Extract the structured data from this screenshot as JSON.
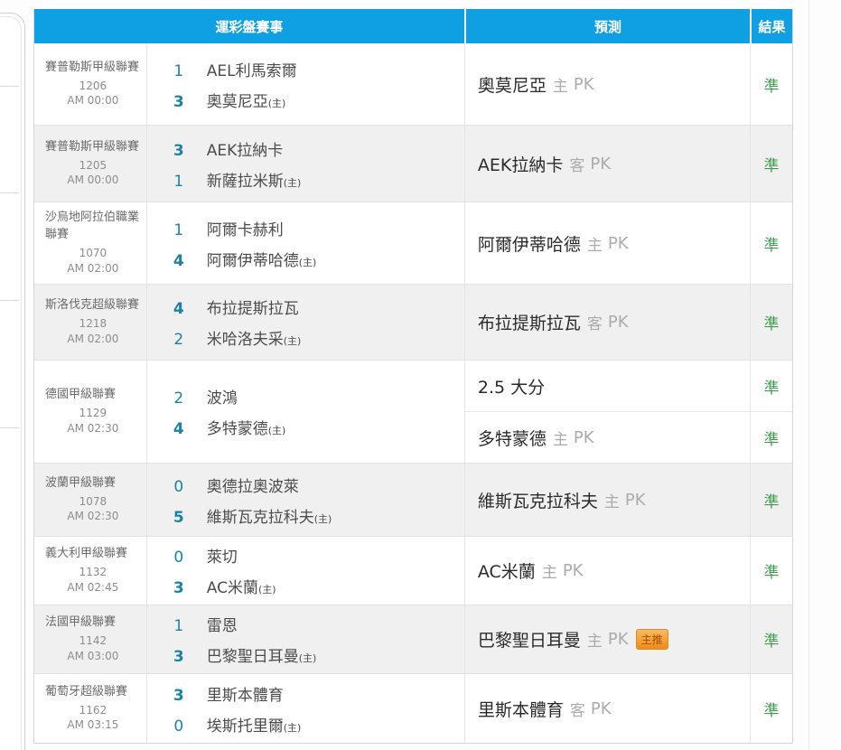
{
  "colors": {
    "header_bg": "#0f9fe3",
    "header_text": "#ffffff",
    "score": "#1b84a5",
    "muted": "#ababab",
    "result_green": "#3f9e4e",
    "badge_top": "#f7bc62",
    "badge_bottom": "#ee8c17",
    "badge_text": "#a94b00",
    "row_alt_bg": "#f0f0f0"
  },
  "table": {
    "headers": {
      "event": "運彩盤賽事",
      "prediction": "預測",
      "result": "結果"
    },
    "rows": [
      {
        "league": "賽普勒斯甲級聯賽",
        "match_id": "1206",
        "start_time": "AM 00:00",
        "away": {
          "score": "1",
          "team": "AEL利馬索爾",
          "suffix": ""
        },
        "home": {
          "score": "3",
          "team": "奧莫尼亞",
          "suffix": "(主)"
        },
        "winner": "home",
        "predictions": [
          {
            "pick": "奧莫尼亞",
            "venue": "主",
            "line": "PK",
            "badge": "",
            "result": "準"
          }
        ]
      },
      {
        "league": "賽普勒斯甲級聯賽",
        "match_id": "1205",
        "start_time": "AM 00:00",
        "away": {
          "score": "3",
          "team": "AEK拉納卡",
          "suffix": ""
        },
        "home": {
          "score": "1",
          "team": "新薩拉米斯",
          "suffix": "(主)"
        },
        "winner": "away",
        "predictions": [
          {
            "pick": "AEK拉納卡",
            "venue": "客",
            "line": "PK",
            "badge": "",
            "result": "準"
          }
        ]
      },
      {
        "league": "沙烏地阿拉伯職業聯賽",
        "match_id": "1070",
        "start_time": "AM 02:00",
        "away": {
          "score": "1",
          "team": "阿爾卡赫利",
          "suffix": ""
        },
        "home": {
          "score": "4",
          "team": "阿爾伊蒂哈德",
          "suffix": "(主)"
        },
        "winner": "home",
        "predictions": [
          {
            "pick": "阿爾伊蒂哈德",
            "venue": "主",
            "line": "PK",
            "badge": "",
            "result": "準"
          }
        ]
      },
      {
        "league": "斯洛伐克超級聯賽",
        "match_id": "1218",
        "start_time": "AM 02:00",
        "away": {
          "score": "4",
          "team": "布拉提斯拉瓦",
          "suffix": ""
        },
        "home": {
          "score": "2",
          "team": "米哈洛夫采",
          "suffix": "(主)"
        },
        "winner": "away",
        "predictions": [
          {
            "pick": "布拉提斯拉瓦",
            "venue": "客",
            "line": "PK",
            "badge": "",
            "result": "準"
          }
        ]
      },
      {
        "league": "德國甲級聯賽",
        "match_id": "1129",
        "start_time": "AM 02:30",
        "away": {
          "score": "2",
          "team": "波鴻",
          "suffix": ""
        },
        "home": {
          "score": "4",
          "team": "多特蒙德",
          "suffix": "(主)"
        },
        "winner": "home",
        "predictions": [
          {
            "pick": "2.5 大分",
            "venue": "",
            "line": "",
            "badge": "",
            "result": "準"
          },
          {
            "pick": "多特蒙德",
            "venue": "主",
            "line": "PK",
            "badge": "",
            "result": "準"
          }
        ]
      },
      {
        "league": "波蘭甲級聯賽",
        "match_id": "1078",
        "start_time": "AM 02:30",
        "away": {
          "score": "0",
          "team": "奧德拉奧波萊",
          "suffix": ""
        },
        "home": {
          "score": "5",
          "team": "維斯瓦克拉科夫",
          "suffix": "(主)"
        },
        "winner": "home",
        "predictions": [
          {
            "pick": "維斯瓦克拉科夫",
            "venue": "主",
            "line": "PK",
            "badge": "",
            "result": "準"
          }
        ]
      },
      {
        "league": "義大利甲級聯賽",
        "match_id": "1132",
        "start_time": "AM 02:45",
        "away": {
          "score": "0",
          "team": "萊切",
          "suffix": ""
        },
        "home": {
          "score": "3",
          "team": "AC米蘭",
          "suffix": "(主)"
        },
        "winner": "home",
        "predictions": [
          {
            "pick": "AC米蘭",
            "venue": "主",
            "line": "PK",
            "badge": "",
            "result": "準"
          }
        ]
      },
      {
        "league": "法國甲級聯賽",
        "match_id": "1142",
        "start_time": "AM 03:00",
        "away": {
          "score": "1",
          "team": "雷恩",
          "suffix": ""
        },
        "home": {
          "score": "3",
          "team": "巴黎聖日耳曼",
          "suffix": "(主)"
        },
        "winner": "home",
        "predictions": [
          {
            "pick": "巴黎聖日耳曼",
            "venue": "主",
            "line": "PK",
            "badge": "主推",
            "result": "準"
          }
        ]
      },
      {
        "league": "葡萄牙超級聯賽",
        "match_id": "1162",
        "start_time": "AM 03:15",
        "away": {
          "score": "3",
          "team": "里斯本體育",
          "suffix": ""
        },
        "home": {
          "score": "0",
          "team": "埃斯托里爾",
          "suffix": "(主)"
        },
        "winner": "away",
        "predictions": [
          {
            "pick": "里斯本體育",
            "venue": "客",
            "line": "PK",
            "badge": "",
            "result": "準"
          }
        ]
      }
    ]
  }
}
